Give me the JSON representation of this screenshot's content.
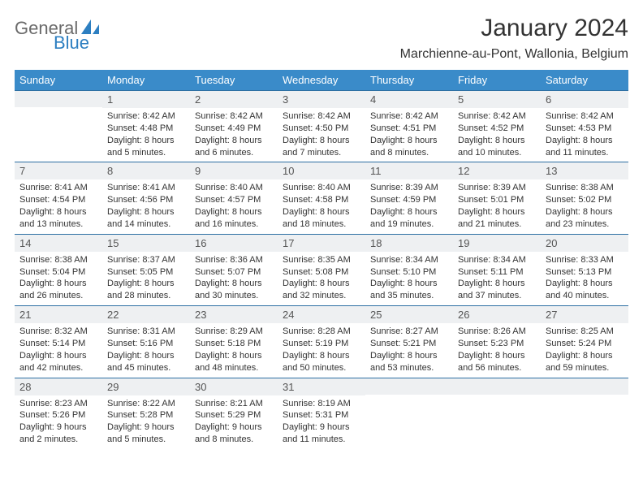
{
  "logo": {
    "text1": "General",
    "text2": "Blue",
    "icon_color": "#2d7fc1"
  },
  "title": {
    "month": "January 2024",
    "location": "Marchienne-au-Pont, Wallonia, Belgium"
  },
  "colors": {
    "header_bg": "#3a8bc9",
    "header_text": "#ffffff",
    "daynum_bg": "#eef0f2",
    "daynum_border": "#2d6fa3",
    "body_text": "#333333"
  },
  "day_headers": [
    "Sunday",
    "Monday",
    "Tuesday",
    "Wednesday",
    "Thursday",
    "Friday",
    "Saturday"
  ],
  "weeks": [
    [
      {
        "n": "",
        "lines": []
      },
      {
        "n": "1",
        "lines": [
          "Sunrise: 8:42 AM",
          "Sunset: 4:48 PM",
          "Daylight: 8 hours",
          "and 5 minutes."
        ]
      },
      {
        "n": "2",
        "lines": [
          "Sunrise: 8:42 AM",
          "Sunset: 4:49 PM",
          "Daylight: 8 hours",
          "and 6 minutes."
        ]
      },
      {
        "n": "3",
        "lines": [
          "Sunrise: 8:42 AM",
          "Sunset: 4:50 PM",
          "Daylight: 8 hours",
          "and 7 minutes."
        ]
      },
      {
        "n": "4",
        "lines": [
          "Sunrise: 8:42 AM",
          "Sunset: 4:51 PM",
          "Daylight: 8 hours",
          "and 8 minutes."
        ]
      },
      {
        "n": "5",
        "lines": [
          "Sunrise: 8:42 AM",
          "Sunset: 4:52 PM",
          "Daylight: 8 hours",
          "and 10 minutes."
        ]
      },
      {
        "n": "6",
        "lines": [
          "Sunrise: 8:42 AM",
          "Sunset: 4:53 PM",
          "Daylight: 8 hours",
          "and 11 minutes."
        ]
      }
    ],
    [
      {
        "n": "7",
        "lines": [
          "Sunrise: 8:41 AM",
          "Sunset: 4:54 PM",
          "Daylight: 8 hours",
          "and 13 minutes."
        ]
      },
      {
        "n": "8",
        "lines": [
          "Sunrise: 8:41 AM",
          "Sunset: 4:56 PM",
          "Daylight: 8 hours",
          "and 14 minutes."
        ]
      },
      {
        "n": "9",
        "lines": [
          "Sunrise: 8:40 AM",
          "Sunset: 4:57 PM",
          "Daylight: 8 hours",
          "and 16 minutes."
        ]
      },
      {
        "n": "10",
        "lines": [
          "Sunrise: 8:40 AM",
          "Sunset: 4:58 PM",
          "Daylight: 8 hours",
          "and 18 minutes."
        ]
      },
      {
        "n": "11",
        "lines": [
          "Sunrise: 8:39 AM",
          "Sunset: 4:59 PM",
          "Daylight: 8 hours",
          "and 19 minutes."
        ]
      },
      {
        "n": "12",
        "lines": [
          "Sunrise: 8:39 AM",
          "Sunset: 5:01 PM",
          "Daylight: 8 hours",
          "and 21 minutes."
        ]
      },
      {
        "n": "13",
        "lines": [
          "Sunrise: 8:38 AM",
          "Sunset: 5:02 PM",
          "Daylight: 8 hours",
          "and 23 minutes."
        ]
      }
    ],
    [
      {
        "n": "14",
        "lines": [
          "Sunrise: 8:38 AM",
          "Sunset: 5:04 PM",
          "Daylight: 8 hours",
          "and 26 minutes."
        ]
      },
      {
        "n": "15",
        "lines": [
          "Sunrise: 8:37 AM",
          "Sunset: 5:05 PM",
          "Daylight: 8 hours",
          "and 28 minutes."
        ]
      },
      {
        "n": "16",
        "lines": [
          "Sunrise: 8:36 AM",
          "Sunset: 5:07 PM",
          "Daylight: 8 hours",
          "and 30 minutes."
        ]
      },
      {
        "n": "17",
        "lines": [
          "Sunrise: 8:35 AM",
          "Sunset: 5:08 PM",
          "Daylight: 8 hours",
          "and 32 minutes."
        ]
      },
      {
        "n": "18",
        "lines": [
          "Sunrise: 8:34 AM",
          "Sunset: 5:10 PM",
          "Daylight: 8 hours",
          "and 35 minutes."
        ]
      },
      {
        "n": "19",
        "lines": [
          "Sunrise: 8:34 AM",
          "Sunset: 5:11 PM",
          "Daylight: 8 hours",
          "and 37 minutes."
        ]
      },
      {
        "n": "20",
        "lines": [
          "Sunrise: 8:33 AM",
          "Sunset: 5:13 PM",
          "Daylight: 8 hours",
          "and 40 minutes."
        ]
      }
    ],
    [
      {
        "n": "21",
        "lines": [
          "Sunrise: 8:32 AM",
          "Sunset: 5:14 PM",
          "Daylight: 8 hours",
          "and 42 minutes."
        ]
      },
      {
        "n": "22",
        "lines": [
          "Sunrise: 8:31 AM",
          "Sunset: 5:16 PM",
          "Daylight: 8 hours",
          "and 45 minutes."
        ]
      },
      {
        "n": "23",
        "lines": [
          "Sunrise: 8:29 AM",
          "Sunset: 5:18 PM",
          "Daylight: 8 hours",
          "and 48 minutes."
        ]
      },
      {
        "n": "24",
        "lines": [
          "Sunrise: 8:28 AM",
          "Sunset: 5:19 PM",
          "Daylight: 8 hours",
          "and 50 minutes."
        ]
      },
      {
        "n": "25",
        "lines": [
          "Sunrise: 8:27 AM",
          "Sunset: 5:21 PM",
          "Daylight: 8 hours",
          "and 53 minutes."
        ]
      },
      {
        "n": "26",
        "lines": [
          "Sunrise: 8:26 AM",
          "Sunset: 5:23 PM",
          "Daylight: 8 hours",
          "and 56 minutes."
        ]
      },
      {
        "n": "27",
        "lines": [
          "Sunrise: 8:25 AM",
          "Sunset: 5:24 PM",
          "Daylight: 8 hours",
          "and 59 minutes."
        ]
      }
    ],
    [
      {
        "n": "28",
        "lines": [
          "Sunrise: 8:23 AM",
          "Sunset: 5:26 PM",
          "Daylight: 9 hours",
          "and 2 minutes."
        ]
      },
      {
        "n": "29",
        "lines": [
          "Sunrise: 8:22 AM",
          "Sunset: 5:28 PM",
          "Daylight: 9 hours",
          "and 5 minutes."
        ]
      },
      {
        "n": "30",
        "lines": [
          "Sunrise: 8:21 AM",
          "Sunset: 5:29 PM",
          "Daylight: 9 hours",
          "and 8 minutes."
        ]
      },
      {
        "n": "31",
        "lines": [
          "Sunrise: 8:19 AM",
          "Sunset: 5:31 PM",
          "Daylight: 9 hours",
          "and 11 minutes."
        ]
      },
      {
        "n": "",
        "lines": []
      },
      {
        "n": "",
        "lines": []
      },
      {
        "n": "",
        "lines": []
      }
    ]
  ]
}
